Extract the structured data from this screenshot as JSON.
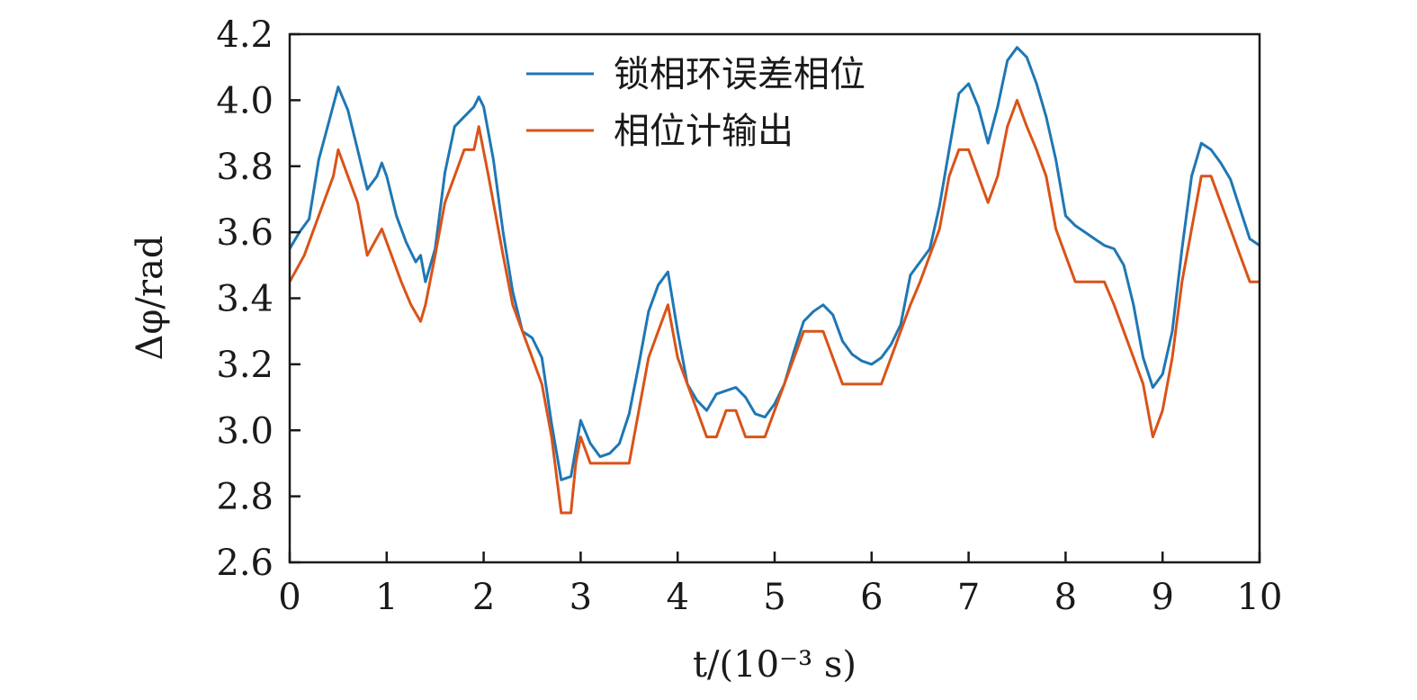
{
  "chart_data": {
    "type": "line",
    "xlabel": "t/(10⁻³ s)",
    "ylabel": "Δφ/rad",
    "xlim": [
      0,
      10
    ],
    "ylim": [
      2.6,
      4.2
    ],
    "x_ticks": [
      "0",
      "1",
      "2",
      "3",
      "4",
      "5",
      "6",
      "7",
      "8",
      "9",
      "10"
    ],
    "y_ticks": [
      "2.6",
      "2.8",
      "3.0",
      "3.2",
      "3.4",
      "3.6",
      "3.8",
      "4.0",
      "4.2"
    ],
    "grid": false,
    "legend_position": "top-center",
    "series": [
      {
        "name": "锁相环误差相位",
        "color": "#1f77b4",
        "points": [
          [
            0,
            3.55
          ],
          [
            0.1,
            3.6
          ],
          [
            0.2,
            3.64
          ],
          [
            0.3,
            3.82
          ],
          [
            0.4,
            3.93
          ],
          [
            0.5,
            4.04
          ],
          [
            0.6,
            3.97
          ],
          [
            0.7,
            3.85
          ],
          [
            0.8,
            3.73
          ],
          [
            0.9,
            3.77
          ],
          [
            0.95,
            3.81
          ],
          [
            1.0,
            3.77
          ],
          [
            1.1,
            3.65
          ],
          [
            1.2,
            3.57
          ],
          [
            1.3,
            3.51
          ],
          [
            1.35,
            3.53
          ],
          [
            1.4,
            3.45
          ],
          [
            1.5,
            3.55
          ],
          [
            1.6,
            3.78
          ],
          [
            1.7,
            3.92
          ],
          [
            1.8,
            3.95
          ],
          [
            1.9,
            3.98
          ],
          [
            1.95,
            4.01
          ],
          [
            2.0,
            3.98
          ],
          [
            2.1,
            3.82
          ],
          [
            2.2,
            3.6
          ],
          [
            2.3,
            3.42
          ],
          [
            2.4,
            3.3
          ],
          [
            2.5,
            3.28
          ],
          [
            2.6,
            3.22
          ],
          [
            2.7,
            3.02
          ],
          [
            2.8,
            2.85
          ],
          [
            2.9,
            2.86
          ],
          [
            3.0,
            3.03
          ],
          [
            3.1,
            2.96
          ],
          [
            3.2,
            2.92
          ],
          [
            3.3,
            2.93
          ],
          [
            3.4,
            2.96
          ],
          [
            3.5,
            3.05
          ],
          [
            3.6,
            3.2
          ],
          [
            3.7,
            3.36
          ],
          [
            3.8,
            3.44
          ],
          [
            3.9,
            3.48
          ],
          [
            4.0,
            3.3
          ],
          [
            4.1,
            3.14
          ],
          [
            4.2,
            3.09
          ],
          [
            4.3,
            3.06
          ],
          [
            4.4,
            3.11
          ],
          [
            4.5,
            3.12
          ],
          [
            4.6,
            3.13
          ],
          [
            4.7,
            3.1
          ],
          [
            4.8,
            3.05
          ],
          [
            4.9,
            3.04
          ],
          [
            5.0,
            3.08
          ],
          [
            5.1,
            3.14
          ],
          [
            5.2,
            3.24
          ],
          [
            5.3,
            3.33
          ],
          [
            5.4,
            3.36
          ],
          [
            5.5,
            3.38
          ],
          [
            5.6,
            3.35
          ],
          [
            5.7,
            3.27
          ],
          [
            5.8,
            3.23
          ],
          [
            5.9,
            3.21
          ],
          [
            6.0,
            3.2
          ],
          [
            6.1,
            3.22
          ],
          [
            6.2,
            3.26
          ],
          [
            6.3,
            3.32
          ],
          [
            6.4,
            3.47
          ],
          [
            6.5,
            3.51
          ],
          [
            6.6,
            3.55
          ],
          [
            6.7,
            3.68
          ],
          [
            6.8,
            3.85
          ],
          [
            6.9,
            4.02
          ],
          [
            7.0,
            4.05
          ],
          [
            7.1,
            3.98
          ],
          [
            7.2,
            3.87
          ],
          [
            7.3,
            3.98
          ],
          [
            7.4,
            4.12
          ],
          [
            7.5,
            4.16
          ],
          [
            7.6,
            4.13
          ],
          [
            7.7,
            4.05
          ],
          [
            7.8,
            3.95
          ],
          [
            7.9,
            3.82
          ],
          [
            8.0,
            3.65
          ],
          [
            8.1,
            3.62
          ],
          [
            8.2,
            3.6
          ],
          [
            8.3,
            3.58
          ],
          [
            8.4,
            3.56
          ],
          [
            8.5,
            3.55
          ],
          [
            8.6,
            3.5
          ],
          [
            8.7,
            3.38
          ],
          [
            8.8,
            3.22
          ],
          [
            8.9,
            3.13
          ],
          [
            9.0,
            3.17
          ],
          [
            9.1,
            3.3
          ],
          [
            9.2,
            3.55
          ],
          [
            9.3,
            3.77
          ],
          [
            9.4,
            3.87
          ],
          [
            9.5,
            3.85
          ],
          [
            9.6,
            3.81
          ],
          [
            9.7,
            3.76
          ],
          [
            9.8,
            3.67
          ],
          [
            9.9,
            3.58
          ],
          [
            10.0,
            3.56
          ]
        ]
      },
      {
        "name": "相位计输出",
        "color": "#d95319",
        "points": [
          [
            0,
            3.45
          ],
          [
            0.15,
            3.53
          ],
          [
            0.25,
            3.61
          ],
          [
            0.35,
            3.69
          ],
          [
            0.45,
            3.77
          ],
          [
            0.5,
            3.85
          ],
          [
            0.6,
            3.77
          ],
          [
            0.7,
            3.69
          ],
          [
            0.75,
            3.61
          ],
          [
            0.8,
            3.53
          ],
          [
            0.95,
            3.61
          ],
          [
            1.05,
            3.53
          ],
          [
            1.15,
            3.45
          ],
          [
            1.25,
            3.38
          ],
          [
            1.35,
            3.33
          ],
          [
            1.4,
            3.38
          ],
          [
            1.5,
            3.53
          ],
          [
            1.6,
            3.69
          ],
          [
            1.7,
            3.77
          ],
          [
            1.8,
            3.85
          ],
          [
            1.9,
            3.85
          ],
          [
            1.95,
            3.92
          ],
          [
            2.05,
            3.77
          ],
          [
            2.1,
            3.69
          ],
          [
            2.2,
            3.53
          ],
          [
            2.3,
            3.38
          ],
          [
            2.4,
            3.3
          ],
          [
            2.5,
            3.22
          ],
          [
            2.6,
            3.14
          ],
          [
            2.7,
            2.98
          ],
          [
            2.8,
            2.75
          ],
          [
            2.9,
            2.75
          ],
          [
            2.95,
            2.9
          ],
          [
            3.0,
            2.98
          ],
          [
            3.1,
            2.9
          ],
          [
            3.2,
            2.9
          ],
          [
            3.3,
            2.9
          ],
          [
            3.4,
            2.9
          ],
          [
            3.5,
            2.9
          ],
          [
            3.6,
            3.06
          ],
          [
            3.7,
            3.22
          ],
          [
            3.8,
            3.3
          ],
          [
            3.9,
            3.38
          ],
          [
            4.0,
            3.22
          ],
          [
            4.1,
            3.14
          ],
          [
            4.2,
            3.06
          ],
          [
            4.3,
            2.98
          ],
          [
            4.4,
            2.98
          ],
          [
            4.5,
            3.06
          ],
          [
            4.6,
            3.06
          ],
          [
            4.7,
            2.98
          ],
          [
            4.8,
            2.98
          ],
          [
            4.9,
            2.98
          ],
          [
            5.0,
            3.06
          ],
          [
            5.1,
            3.14
          ],
          [
            5.2,
            3.22
          ],
          [
            5.3,
            3.3
          ],
          [
            5.4,
            3.3
          ],
          [
            5.5,
            3.3
          ],
          [
            5.6,
            3.22
          ],
          [
            5.7,
            3.14
          ],
          [
            5.8,
            3.14
          ],
          [
            5.9,
            3.14
          ],
          [
            6.0,
            3.14
          ],
          [
            6.1,
            3.14
          ],
          [
            6.2,
            3.22
          ],
          [
            6.3,
            3.3
          ],
          [
            6.4,
            3.38
          ],
          [
            6.5,
            3.45
          ],
          [
            6.6,
            3.53
          ],
          [
            6.7,
            3.61
          ],
          [
            6.8,
            3.77
          ],
          [
            6.9,
            3.85
          ],
          [
            7.0,
            3.85
          ],
          [
            7.1,
            3.77
          ],
          [
            7.2,
            3.69
          ],
          [
            7.3,
            3.77
          ],
          [
            7.4,
            3.92
          ],
          [
            7.5,
            4.0
          ],
          [
            7.6,
            3.92
          ],
          [
            7.7,
            3.85
          ],
          [
            7.8,
            3.77
          ],
          [
            7.9,
            3.61
          ],
          [
            8.0,
            3.53
          ],
          [
            8.1,
            3.45
          ],
          [
            8.2,
            3.45
          ],
          [
            8.3,
            3.45
          ],
          [
            8.4,
            3.45
          ],
          [
            8.5,
            3.38
          ],
          [
            8.6,
            3.3
          ],
          [
            8.7,
            3.22
          ],
          [
            8.8,
            3.14
          ],
          [
            8.9,
            2.98
          ],
          [
            9.0,
            3.06
          ],
          [
            9.1,
            3.22
          ],
          [
            9.2,
            3.45
          ],
          [
            9.3,
            3.61
          ],
          [
            9.4,
            3.77
          ],
          [
            9.5,
            3.77
          ],
          [
            9.6,
            3.69
          ],
          [
            9.7,
            3.61
          ],
          [
            9.8,
            3.53
          ],
          [
            9.9,
            3.45
          ],
          [
            10.0,
            3.45
          ]
        ]
      }
    ]
  }
}
